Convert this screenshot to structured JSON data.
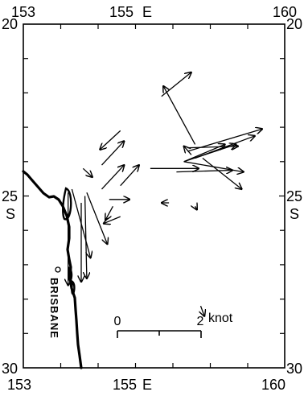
{
  "map": {
    "lon_ticks": [
      "153",
      "155",
      "160"
    ],
    "lat_ticks": [
      "20",
      "25",
      "30"
    ],
    "top_axis_lon_label": "155",
    "top_axis_lon_suffix": "E",
    "bottom_axis_lon_label": "155",
    "bottom_axis_lon_suffix": "E",
    "left_axis_lat_suffix": "S",
    "right_axis_lat_suffix": "S",
    "city_label": "BRISBANE",
    "scale_bar": {
      "min_label": "0",
      "max_label": "2",
      "unit": "knot",
      "min_value": 0,
      "max_value": 2
    },
    "colors": {
      "ink": "#000000",
      "background": "#ffffff"
    }
  },
  "chart_data": {
    "type": "vector-map",
    "lon_range": [
      153,
      160
    ],
    "lat_range": [
      20,
      30
    ],
    "vectors": [
      {
        "lon": 157.6,
        "lat": 23.5,
        "dlon": -0.85,
        "dlat": -1.7
      },
      {
        "lon": 155.6,
        "lat": 23.1,
        "dlon": -0.55,
        "dlat": 0.55
      },
      {
        "lon": 156.7,
        "lat": 22.1,
        "dlon": 0.8,
        "dlat": -0.7
      },
      {
        "lon": 155.1,
        "lat": 24.1,
        "dlon": 0.6,
        "dlat": -0.7
      },
      {
        "lon": 155.1,
        "lat": 24.8,
        "dlon": 0.6,
        "dlat": -0.7
      },
      {
        "lon": 155.6,
        "lat": 24.7,
        "dlon": 0.5,
        "dlat": -0.6
      },
      {
        "lon": 154.6,
        "lat": 24.2,
        "dlon": 0.25,
        "dlat": 0.25
      },
      {
        "lon": 155.3,
        "lat": 25.1,
        "dlon": 0.55,
        "dlat": 0.0
      },
      {
        "lon": 157.3,
        "lat": 24.0,
        "dlon": 1.4,
        "dlat": -0.5
      },
      {
        "lon": 157.3,
        "lat": 24.0,
        "dlon": 1.6,
        "dlat": 0.3
      },
      {
        "lon": 157.3,
        "lat": 24.0,
        "dlon": 1.1,
        "dlat": -0.5
      },
      {
        "lon": 157.1,
        "lat": 24.3,
        "dlon": 1.5,
        "dlat": -0.05
      },
      {
        "lon": 157.4,
        "lat": 23.7,
        "dlon": 2.0,
        "dlat": -0.65
      },
      {
        "lon": 157.6,
        "lat": 23.9,
        "dlon": 1.6,
        "dlat": -0.65
      },
      {
        "lon": 157.4,
        "lat": 23.6,
        "dlon": 1.35,
        "dlat": -0.05
      },
      {
        "lon": 157.5,
        "lat": 23.8,
        "dlon": -0.2,
        "dlat": -0.25
      },
      {
        "lon": 156.4,
        "lat": 24.2,
        "dlon": 1.3,
        "dlat": 0.0
      },
      {
        "lon": 157.8,
        "lat": 23.9,
        "dlon": 1.05,
        "dlat": 0.9
      },
      {
        "lon": 154.2,
        "lat": 24.9,
        "dlon": 0.0,
        "dlat": 2.7
      },
      {
        "lon": 154.55,
        "lat": 25.2,
        "dlon": 0.0,
        "dlat": 2.3
      },
      {
        "lon": 154.65,
        "lat": 25.0,
        "dlon": 0.05,
        "dlat": 2.4
      },
      {
        "lon": 154.3,
        "lat": 24.8,
        "dlon": 0.5,
        "dlat": 2.0
      },
      {
        "lon": 154.7,
        "lat": 24.9,
        "dlon": 0.55,
        "dlat": 1.5
      },
      {
        "lon": 155.6,
        "lat": 25.6,
        "dlon": -0.45,
        "dlat": 0.2
      },
      {
        "lon": 155.4,
        "lat": 25.3,
        "dlon": -0.2,
        "dlat": 0.4
      },
      {
        "lon": 156.9,
        "lat": 25.2,
        "dlon": -0.2,
        "dlat": 0.0
      },
      {
        "lon": 157.6,
        "lat": 25.3,
        "dlon": 0.05,
        "dlat": 0.1
      },
      {
        "lon": 157.75,
        "lat": 28.2,
        "dlon": 0.1,
        "dlat": 0.3
      }
    ]
  }
}
